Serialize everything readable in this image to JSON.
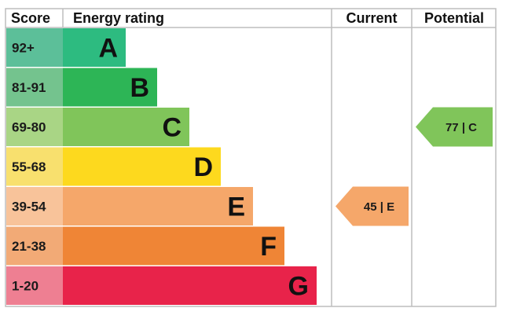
{
  "header": {
    "score": "Score",
    "energy_rating": "Energy rating",
    "current": "Current",
    "potential": "Potential"
  },
  "chart_data": {
    "type": "bar",
    "bands": [
      {
        "score": "92+",
        "letter": "A",
        "score_color": "#5cbf99",
        "bar_color": "#2dbb80"
      },
      {
        "score": "81-91",
        "letter": "B",
        "score_color": "#74c38e",
        "bar_color": "#2db556"
      },
      {
        "score": "69-80",
        "letter": "C",
        "score_color": "#a9d585",
        "bar_color": "#80c55a"
      },
      {
        "score": "55-68",
        "letter": "D",
        "score_color": "#f8e06e",
        "bar_color": "#fdd91e"
      },
      {
        "score": "39-54",
        "letter": "E",
        "score_color": "#f8c39a",
        "bar_color": "#f5a76a"
      },
      {
        "score": "21-38",
        "letter": "F",
        "score_color": "#f2aa76",
        "bar_color": "#ef8536"
      },
      {
        "score": "1-20",
        "letter": "G",
        "score_color": "#ee7f92",
        "bar_color": "#e8234a"
      }
    ],
    "current": {
      "value": 45,
      "band": "E",
      "label": "45 | E",
      "color": "#f5a76a"
    },
    "potential": {
      "value": 77,
      "band": "C",
      "label": "77 | C",
      "color": "#80c55a"
    }
  }
}
